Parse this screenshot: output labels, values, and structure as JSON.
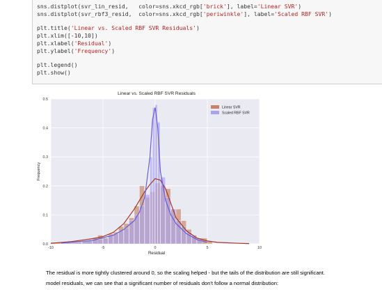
{
  "code": {
    "lines": [
      [
        "sns.distplot(svr_lin_resid,   color=sns.xkcd_rgb[",
        "'brick'",
        "], label=",
        "'Linear SVR'",
        ")"
      ],
      [
        "sns.distplot(svr_rbf3_resid,  color=sns.xkcd_rgb[",
        "'periwinkle'",
        "], label=",
        "'Scaled RBF SVR'",
        ")"
      ],
      [],
      [
        "plt.title(",
        "'Linear vs. Scaled RBF SVR Residuals'",
        ")"
      ],
      [
        "plt.xlim([-10,10])"
      ],
      [
        "plt.xlabel(",
        "'Residual'",
        ")"
      ],
      [
        "plt.ylabel(",
        "'Frequency'",
        ")"
      ],
      [],
      [
        "plt.legend()"
      ],
      [
        "plt.show()"
      ]
    ]
  },
  "chart_data": {
    "type": "histogram",
    "title": "Linear vs. Scaled RBF SVR Residuals",
    "xlabel": "Residual",
    "ylabel": "Frequency",
    "xlim": [
      -10,
      10
    ],
    "ylim": [
      0,
      0.5
    ],
    "xticks": [
      "-10",
      "-5",
      "0",
      "5",
      "10"
    ],
    "yticks": [
      "0.0",
      "0.1",
      "0.2",
      "0.3",
      "0.4",
      "0.5"
    ],
    "grid": true,
    "legend_position": "top-right",
    "series": [
      {
        "name": "Linear SVR",
        "color": "#a03623",
        "fill": "#c58469",
        "bins_x": [
          -10,
          -8,
          -7,
          -6,
          -5.5,
          -5,
          -4.5,
          -4,
          -3.5,
          -3,
          -2.5,
          -2,
          -1.5,
          -1,
          -0.5,
          0,
          0.5,
          1,
          1.5,
          2,
          2.5,
          3,
          3.5,
          4,
          5
        ],
        "bins_y": [
          0.005,
          0.01,
          0.01,
          0.02,
          0.03,
          0.02,
          0.035,
          0.04,
          0.06,
          0.07,
          0.09,
          0.13,
          0.2,
          0.16,
          0.18,
          0.21,
          0.2,
          0.19,
          0.12,
          0.12,
          0.08,
          0.05,
          0.03,
          0.02,
          0.01
        ],
        "kde_x": [
          -10,
          -8,
          -6,
          -5,
          -4,
          -3,
          -2,
          -1.5,
          -1,
          -0.5,
          0,
          0.5,
          1,
          1.5,
          2,
          3,
          4,
          5,
          6,
          8,
          9
        ],
        "kde_y": [
          0.002,
          0.008,
          0.018,
          0.025,
          0.04,
          0.07,
          0.12,
          0.15,
          0.18,
          0.205,
          0.225,
          0.22,
          0.19,
          0.14,
          0.09,
          0.045,
          0.02,
          0.01,
          0.005,
          0.002,
          0.001
        ]
      },
      {
        "name": "Scaled RBF SVR",
        "color": "#6a5cd6",
        "fill": "#a9a2ec",
        "bins_x": [
          -9,
          -7,
          -6,
          -5,
          -4.5,
          -4,
          -3.5,
          -3,
          -2.5,
          -2,
          -1.5,
          -1,
          -0.5,
          -0.25,
          0,
          0.25,
          0.5,
          1,
          1.5,
          2,
          2.5,
          3,
          3.5,
          4
        ],
        "bins_y": [
          0.005,
          0.01,
          0.015,
          0.02,
          0.03,
          0.035,
          0.045,
          0.055,
          0.08,
          0.1,
          0.13,
          0.17,
          0.3,
          0.47,
          0.48,
          0.42,
          0.23,
          0.16,
          0.12,
          0.08,
          0.06,
          0.04,
          0.03,
          0.015
        ],
        "kde_x": [
          -9,
          -6,
          -4,
          -3,
          -2,
          -1.5,
          -1,
          -0.5,
          -0.25,
          0,
          0.25,
          0.5,
          1,
          1.5,
          2,
          3,
          4,
          5
        ],
        "kde_y": [
          0.003,
          0.012,
          0.03,
          0.05,
          0.08,
          0.11,
          0.16,
          0.3,
          0.43,
          0.47,
          0.4,
          0.25,
          0.15,
          0.1,
          0.07,
          0.035,
          0.015,
          0.005
        ]
      }
    ]
  },
  "markdown": {
    "line1": "The residual is more tightly clustered around 0, so the scaling helped - but the tails of the distribution are still significant.",
    "line2": "model residuals, we can see that a significant number of residuals don't follow a normal distribution:"
  }
}
